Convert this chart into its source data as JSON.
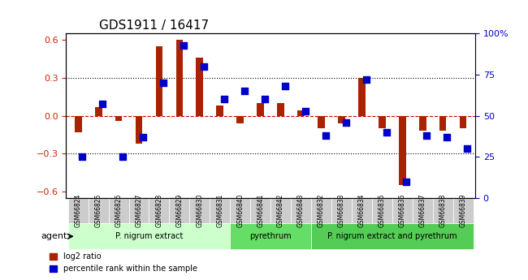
{
  "title": "GDS1911 / 16417",
  "samples": [
    "GSM66824",
    "GSM66825",
    "GSM66826",
    "GSM66827",
    "GSM66828",
    "GSM66829",
    "GSM66830",
    "GSM66831",
    "GSM66840",
    "GSM66841",
    "GSM66842",
    "GSM66843",
    "GSM66832",
    "GSM66833",
    "GSM66834",
    "GSM66835",
    "GSM66836",
    "GSM66837",
    "GSM66838",
    "GSM66839"
  ],
  "log2_ratio": [
    -0.13,
    0.07,
    -0.04,
    -0.22,
    0.55,
    0.6,
    0.46,
    0.08,
    -0.06,
    0.1,
    0.1,
    0.04,
    -0.1,
    -0.06,
    0.3,
    -0.1,
    -0.55,
    -0.12,
    -0.12,
    -0.1
  ],
  "pct_rank": [
    25,
    57,
    25,
    37,
    70,
    93,
    80,
    60,
    65,
    60,
    68,
    53,
    38,
    46,
    72,
    40,
    10,
    38,
    37,
    30
  ],
  "groups": [
    {
      "label": "P. nigrum extract",
      "start": 0,
      "end": 7,
      "color": "#aaffaa"
    },
    {
      "label": "pyrethrum",
      "start": 8,
      "end": 11,
      "color": "#66dd66"
    },
    {
      "label": "P. nigrum extract and pyrethrum",
      "start": 12,
      "end": 19,
      "color": "#33cc33"
    }
  ],
  "ylim_left": [
    -0.65,
    0.65
  ],
  "ylim_right": [
    0,
    100
  ],
  "yticks_left": [
    -0.6,
    -0.3,
    0.0,
    0.3,
    0.6
  ],
  "yticks_right": [
    0,
    25,
    50,
    75,
    100
  ],
  "bar_color": "#aa2200",
  "dot_color": "#0000cc",
  "zero_line_color": "#cc0000",
  "grid_color": "#000000",
  "bg_color": "#ffffff",
  "tick_label_color_left": "#cc2200",
  "tick_label_color_right": "#0000cc",
  "legend_red_label": "log2 ratio",
  "legend_blue_label": "percentile rank within the sample",
  "agent_label": "agent",
  "group_label_color": "#000000",
  "xticklabel_bg": "#cccccc"
}
